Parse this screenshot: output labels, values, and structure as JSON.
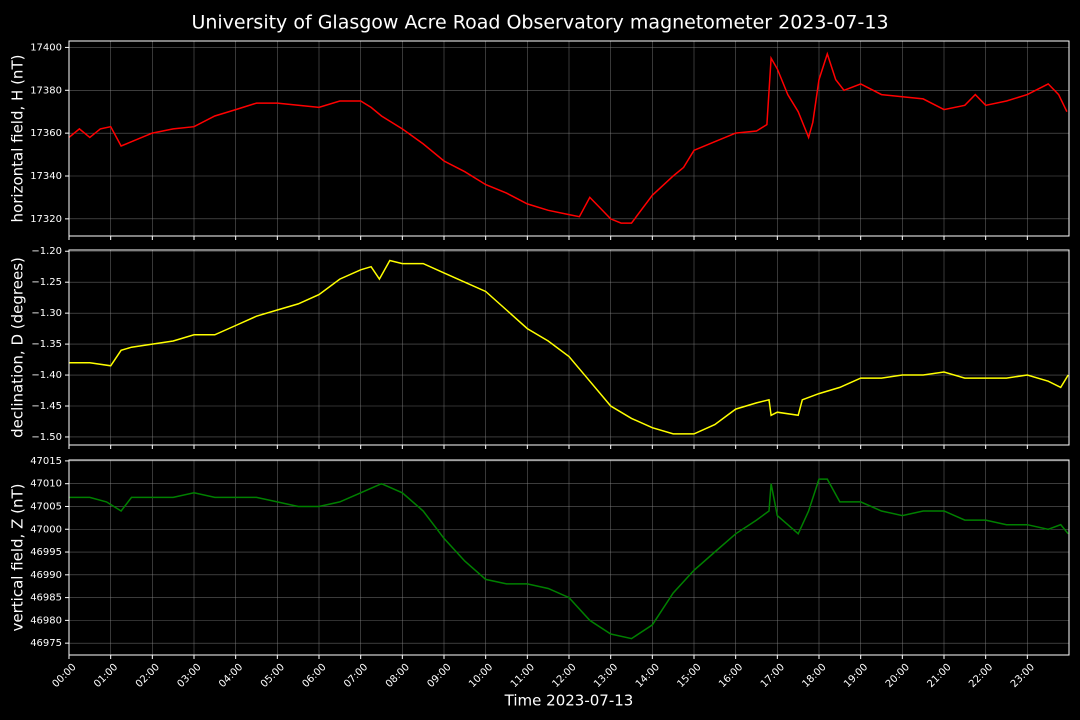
{
  "title": "University of Glasgow Acre Road Observatory magnetometer 2023-07-13",
  "chart_data": [
    {
      "type": "line",
      "y_label": "horizontal field, H (nT)",
      "color": "#ff0000",
      "grid": true,
      "xlim": [
        0,
        24
      ],
      "xticks": [
        0,
        1,
        2,
        3,
        4,
        5,
        6,
        7,
        8,
        9,
        10,
        11,
        12,
        13,
        14,
        15,
        16,
        17,
        18,
        19,
        20,
        21,
        22,
        23
      ],
      "ylim": [
        17312,
        17403
      ],
      "yticks": [
        17320,
        17340,
        17360,
        17380,
        17400
      ],
      "x": [
        0,
        0.25,
        0.5,
        0.75,
        1,
        1.25,
        1.5,
        2,
        2.5,
        3,
        3.5,
        4,
        4.5,
        5,
        5.5,
        6,
        6.5,
        7,
        7.25,
        7.5,
        8,
        8.5,
        9,
        9.5,
        10,
        10.5,
        11,
        11.5,
        12,
        12.25,
        12.5,
        12.75,
        13,
        13.25,
        13.5,
        14,
        14.5,
        14.75,
        15,
        15.5,
        16,
        16.5,
        16.75,
        16.85,
        17,
        17.25,
        17.5,
        17.75,
        17.85,
        18,
        18.2,
        18.4,
        18.6,
        19,
        19.5,
        20,
        20.5,
        21,
        21.5,
        21.75,
        22,
        22.5,
        23,
        23.5,
        23.75,
        23.95
      ],
      "values": [
        17358,
        17362,
        17358,
        17362,
        17363,
        17354,
        17356,
        17360,
        17362,
        17363,
        17368,
        17371,
        17374,
        17374,
        17373,
        17372,
        17375,
        17375,
        17372,
        17368,
        17362,
        17355,
        17347,
        17342,
        17336,
        17332,
        17327,
        17324,
        17322,
        17321,
        17330,
        17325,
        17320,
        17318,
        17318,
        17331,
        17340,
        17344,
        17352,
        17356,
        17360,
        17361,
        17364,
        17395,
        17390,
        17378,
        17370,
        17358,
        17365,
        17385,
        17397,
        17385,
        17380,
        17383,
        17378,
        17377,
        17376,
        17371,
        17373,
        17378,
        17373,
        17375,
        17378,
        17383,
        17378,
        17370
      ]
    },
    {
      "type": "line",
      "y_label": "declination, D (degrees)",
      "color": "#ffff00",
      "grid": true,
      "xlim": [
        0,
        24
      ],
      "xticks": [
        0,
        1,
        2,
        3,
        4,
        5,
        6,
        7,
        8,
        9,
        10,
        11,
        12,
        13,
        14,
        15,
        16,
        17,
        18,
        19,
        20,
        21,
        22,
        23
      ],
      "ylim": [
        -1.513,
        -1.198
      ],
      "yticks": [
        {
          "value": -1.2,
          "label": "−1.20"
        },
        {
          "value": -1.25,
          "label": "−1.25"
        },
        {
          "value": -1.3,
          "label": "−1.30"
        },
        {
          "value": -1.35,
          "label": "−1.35"
        },
        {
          "value": -1.4,
          "label": "−1.40"
        },
        {
          "value": -1.45,
          "label": "−1.45"
        },
        {
          "value": -1.5,
          "label": "−1.50"
        }
      ],
      "x": [
        0,
        0.5,
        1,
        1.25,
        1.5,
        2,
        2.5,
        3,
        3.5,
        4,
        4.5,
        5,
        5.5,
        6,
        6.5,
        7,
        7.25,
        7.45,
        7.7,
        8,
        8.5,
        9,
        9.5,
        10,
        10.5,
        11,
        11.5,
        12,
        12.5,
        13,
        13.5,
        14,
        14.5,
        15,
        15.5,
        16,
        16.5,
        16.8,
        16.85,
        17,
        17.5,
        17.6,
        18,
        18.5,
        19,
        19.5,
        20,
        20.5,
        21,
        21.5,
        22,
        22.5,
        23,
        23.5,
        23.8,
        23.98
      ],
      "values": [
        -1.38,
        -1.38,
        -1.385,
        -1.36,
        -1.355,
        -1.35,
        -1.345,
        -1.335,
        -1.335,
        -1.32,
        -1.305,
        -1.295,
        -1.285,
        -1.27,
        -1.245,
        -1.23,
        -1.225,
        -1.245,
        -1.215,
        -1.22,
        -1.22,
        -1.235,
        -1.25,
        -1.265,
        -1.295,
        -1.325,
        -1.345,
        -1.37,
        -1.41,
        -1.45,
        -1.47,
        -1.485,
        -1.495,
        -1.495,
        -1.48,
        -1.455,
        -1.445,
        -1.44,
        -1.465,
        -1.46,
        -1.465,
        -1.44,
        -1.43,
        -1.42,
        -1.405,
        -1.405,
        -1.4,
        -1.4,
        -1.395,
        -1.405,
        -1.405,
        -1.405,
        -1.4,
        -1.41,
        -1.42,
        -1.4
      ]
    },
    {
      "type": "line",
      "y_label": "vertical field, Z (nT)",
      "x_label": "Time 2023-07-13",
      "color": "#008000",
      "grid": true,
      "xlim": [
        0,
        24
      ],
      "xticks": [
        {
          "value": 0,
          "label": "00:00"
        },
        {
          "value": 1,
          "label": "01:00"
        },
        {
          "value": 2,
          "label": "02:00"
        },
        {
          "value": 3,
          "label": "03:00"
        },
        {
          "value": 4,
          "label": "04:00"
        },
        {
          "value": 5,
          "label": "05:00"
        },
        {
          "value": 6,
          "label": "06:00"
        },
        {
          "value": 7,
          "label": "07:00"
        },
        {
          "value": 8,
          "label": "08:00"
        },
        {
          "value": 9,
          "label": "09:00"
        },
        {
          "value": 10,
          "label": "10:00"
        },
        {
          "value": 11,
          "label": "11:00"
        },
        {
          "value": 12,
          "label": "12:00"
        },
        {
          "value": 13,
          "label": "13:00"
        },
        {
          "value": 14,
          "label": "14:00"
        },
        {
          "value": 15,
          "label": "15:00"
        },
        {
          "value": 16,
          "label": "16:00"
        },
        {
          "value": 17,
          "label": "17:00"
        },
        {
          "value": 18,
          "label": "18:00"
        },
        {
          "value": 19,
          "label": "19:00"
        },
        {
          "value": 20,
          "label": "20:00"
        },
        {
          "value": 21,
          "label": "21:00"
        },
        {
          "value": 22,
          "label": "22:00"
        },
        {
          "value": 23,
          "label": "23:00"
        }
      ],
      "ylim": [
        46972.4,
        47015.2
      ],
      "yticks": [
        46975,
        46980,
        46985,
        46990,
        46995,
        47000,
        47005,
        47010,
        47015
      ],
      "x": [
        0,
        0.5,
        0.9,
        1.25,
        1.5,
        2,
        2.5,
        3,
        3.5,
        4,
        4.5,
        5,
        5.5,
        6,
        6.5,
        7,
        7.5,
        8,
        8.5,
        9,
        9.5,
        10,
        10.5,
        11,
        11.5,
        12,
        12.5,
        13,
        13.5,
        14,
        14.5,
        15,
        15.5,
        16,
        16.5,
        16.8,
        16.85,
        17,
        17.25,
        17.5,
        17.75,
        18,
        18.2,
        18.5,
        19,
        19.5,
        20,
        20.5,
        21,
        21.5,
        22,
        22.5,
        23,
        23.5,
        23.8,
        23.98
      ],
      "values": [
        47007,
        47007,
        47006,
        47004,
        47007,
        47007,
        47007,
        47008,
        47007,
        47007,
        47007,
        47006,
        47005,
        47005,
        47006,
        47008,
        47010,
        47008,
        47004,
        46998,
        46993,
        46989,
        46988,
        46988,
        46987,
        46985,
        46980,
        46977,
        46976,
        46979,
        46986,
        46991,
        46995,
        46999,
        47002,
        47004,
        47010,
        47003,
        47001,
        46999,
        47004,
        47011,
        47011,
        47006,
        47006,
        47004,
        47003,
        47004,
        47004,
        47002,
        47002,
        47001,
        47001,
        47000,
        47001,
        46999
      ]
    }
  ]
}
